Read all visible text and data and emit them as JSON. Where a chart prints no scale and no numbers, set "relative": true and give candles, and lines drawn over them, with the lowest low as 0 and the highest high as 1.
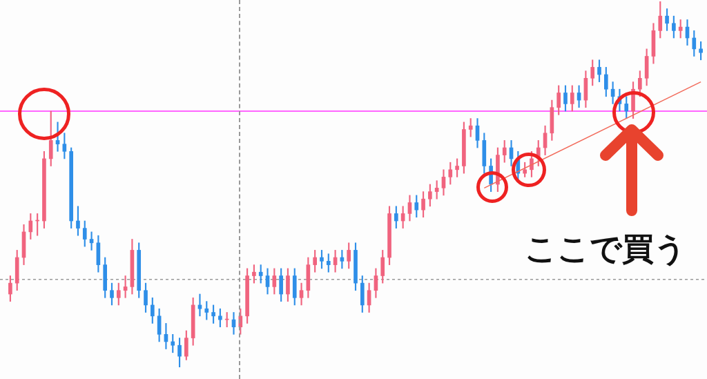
{
  "chart_data": {
    "type": "candlestick",
    "relative": true,
    "categories": [
      null,
      null,
      null,
      null,
      null,
      null,
      null,
      null,
      null,
      null,
      null,
      null,
      null,
      null,
      null,
      null,
      null,
      null,
      null,
      null,
      null,
      null,
      null,
      null,
      null,
      null,
      null,
      null,
      null,
      null,
      null,
      null,
      null,
      null,
      null,
      null,
      null,
      null,
      null,
      null,
      null,
      null,
      null,
      null,
      null,
      null,
      null,
      null,
      null,
      null,
      null,
      null,
      null,
      null,
      null,
      null,
      null,
      null,
      null,
      null,
      null,
      null,
      null,
      null,
      null,
      null,
      null,
      null,
      null,
      null,
      null,
      null,
      null,
      null,
      null,
      null,
      null,
      null,
      null,
      null,
      null,
      null,
      null,
      null,
      null,
      null,
      null,
      null,
      null,
      null,
      null,
      null,
      null,
      null,
      null,
      null,
      null,
      null,
      null,
      null,
      null,
      null,
      null
    ],
    "ohlc": [
      [
        0.2,
        0.25,
        0.18,
        0.23
      ],
      [
        0.23,
        0.32,
        0.21,
        0.3
      ],
      [
        0.3,
        0.39,
        0.28,
        0.37
      ],
      [
        0.37,
        0.42,
        0.35,
        0.4
      ],
      [
        0.4,
        0.42,
        0.36,
        0.4
      ],
      [
        0.4,
        0.59,
        0.38,
        0.57
      ],
      [
        0.57,
        0.7,
        0.55,
        0.62
      ],
      [
        0.62,
        0.67,
        0.59,
        0.61
      ],
      [
        0.61,
        0.64,
        0.57,
        0.59
      ],
      [
        0.59,
        0.6,
        0.38,
        0.4
      ],
      [
        0.4,
        0.44,
        0.36,
        0.38
      ],
      [
        0.38,
        0.4,
        0.33,
        0.35
      ],
      [
        0.35,
        0.37,
        0.32,
        0.34
      ],
      [
        0.34,
        0.36,
        0.26,
        0.28
      ],
      [
        0.28,
        0.3,
        0.19,
        0.21
      ],
      [
        0.21,
        0.23,
        0.17,
        0.19
      ],
      [
        0.19,
        0.23,
        0.17,
        0.21
      ],
      [
        0.21,
        0.25,
        0.19,
        0.22
      ],
      [
        0.22,
        0.35,
        0.2,
        0.32
      ],
      [
        0.32,
        0.34,
        0.19,
        0.21
      ],
      [
        0.21,
        0.23,
        0.15,
        0.17
      ],
      [
        0.17,
        0.19,
        0.12,
        0.14
      ],
      [
        0.14,
        0.16,
        0.07,
        0.09
      ],
      [
        0.09,
        0.12,
        0.05,
        0.07
      ],
      [
        0.07,
        0.09,
        0.04,
        0.06
      ],
      [
        0.06,
        0.08,
        0,
        0.03
      ],
      [
        0.03,
        0.1,
        0.02,
        0.08
      ],
      [
        0.08,
        0.19,
        0.06,
        0.17
      ],
      [
        0.17,
        0.2,
        0.14,
        0.16
      ],
      [
        0.16,
        0.18,
        0.13,
        0.15
      ],
      [
        0.15,
        0.17,
        0.12,
        0.14
      ],
      [
        0.14,
        0.16,
        0.11,
        0.13
      ],
      [
        0.13,
        0.15,
        0.11,
        0.13
      ],
      [
        0.13,
        0.15,
        0.09,
        0.11
      ],
      [
        0.11,
        0.16,
        0.09,
        0.14
      ],
      [
        0.14,
        0.27,
        0.12,
        0.25
      ],
      [
        0.25,
        0.28,
        0.23,
        0.26
      ],
      [
        0.26,
        0.28,
        0.23,
        0.25
      ],
      [
        0.25,
        0.27,
        0.2,
        0.22
      ],
      [
        0.22,
        0.27,
        0.2,
        0.25
      ],
      [
        0.25,
        0.27,
        0.18,
        0.2
      ],
      [
        0.2,
        0.27,
        0.18,
        0.25
      ],
      [
        0.25,
        0.27,
        0.17,
        0.19
      ],
      [
        0.19,
        0.23,
        0.17,
        0.21
      ],
      [
        0.21,
        0.3,
        0.19,
        0.28
      ],
      [
        0.28,
        0.32,
        0.26,
        0.3
      ],
      [
        0.3,
        0.32,
        0.27,
        0.29
      ],
      [
        0.29,
        0.31,
        0.26,
        0.28
      ],
      [
        0.28,
        0.32,
        0.26,
        0.3
      ],
      [
        0.3,
        0.32,
        0.27,
        0.29
      ],
      [
        0.29,
        0.34,
        0.27,
        0.32
      ],
      [
        0.32,
        0.34,
        0.21,
        0.23
      ],
      [
        0.23,
        0.25,
        0.15,
        0.17
      ],
      [
        0.17,
        0.23,
        0.15,
        0.21
      ],
      [
        0.21,
        0.27,
        0.19,
        0.25
      ],
      [
        0.25,
        0.32,
        0.23,
        0.3
      ],
      [
        0.3,
        0.44,
        0.28,
        0.42
      ],
      [
        0.42,
        0.44,
        0.38,
        0.4
      ],
      [
        0.4,
        0.44,
        0.38,
        0.42
      ],
      [
        0.42,
        0.47,
        0.4,
        0.45
      ],
      [
        0.45,
        0.47,
        0.41,
        0.43
      ],
      [
        0.43,
        0.48,
        0.41,
        0.46
      ],
      [
        0.46,
        0.5,
        0.44,
        0.48
      ],
      [
        0.48,
        0.51,
        0.46,
        0.49
      ],
      [
        0.49,
        0.54,
        0.47,
        0.52
      ],
      [
        0.52,
        0.56,
        0.5,
        0.54
      ],
      [
        0.54,
        0.57,
        0.52,
        0.55
      ],
      [
        0.55,
        0.67,
        0.53,
        0.65
      ],
      [
        0.65,
        0.68,
        0.63,
        0.66
      ],
      [
        0.66,
        0.68,
        0.6,
        0.62
      ],
      [
        0.62,
        0.64,
        0.53,
        0.55
      ],
      [
        0.55,
        0.57,
        0.48,
        0.5
      ],
      [
        0.5,
        0.6,
        0.48,
        0.58
      ],
      [
        0.58,
        0.62,
        0.56,
        0.6
      ],
      [
        0.6,
        0.62,
        0.55,
        0.57
      ],
      [
        0.57,
        0.59,
        0.51,
        0.53
      ],
      [
        0.53,
        0.56,
        0.52,
        0.54
      ],
      [
        0.54,
        0.59,
        0.52,
        0.57
      ],
      [
        0.57,
        0.62,
        0.55,
        0.6
      ],
      [
        0.6,
        0.66,
        0.58,
        0.64
      ],
      [
        0.64,
        0.73,
        0.62,
        0.71
      ],
      [
        0.71,
        0.77,
        0.69,
        0.75
      ],
      [
        0.75,
        0.77,
        0.7,
        0.72
      ],
      [
        0.72,
        0.77,
        0.7,
        0.75
      ],
      [
        0.75,
        0.77,
        0.71,
        0.73
      ],
      [
        0.73,
        0.81,
        0.71,
        0.79
      ],
      [
        0.79,
        0.84,
        0.77,
        0.82
      ],
      [
        0.82,
        0.84,
        0.78,
        0.8
      ],
      [
        0.8,
        0.82,
        0.74,
        0.76
      ],
      [
        0.76,
        0.78,
        0.72,
        0.74
      ],
      [
        0.74,
        0.76,
        0.7,
        0.72
      ],
      [
        0.72,
        0.74,
        0.68,
        0.7
      ],
      [
        0.7,
        0.78,
        0.68,
        0.76
      ],
      [
        0.76,
        0.81,
        0.74,
        0.79
      ],
      [
        0.79,
        0.87,
        0.77,
        0.85
      ],
      [
        0.85,
        0.94,
        0.83,
        0.92
      ],
      [
        0.92,
        1,
        0.9,
        0.96
      ],
      [
        0.96,
        0.98,
        0.92,
        0.94
      ],
      [
        0.94,
        0.96,
        0.9,
        0.92
      ],
      [
        0.92,
        0.95,
        0.9,
        0.93
      ],
      [
        0.93,
        0.95,
        0.88,
        0.9
      ],
      [
        0.9,
        0.92,
        0.85,
        0.87
      ],
      [
        0.87,
        0.89,
        0.84,
        0.86
      ]
    ],
    "colors": [
      "#f0647f",
      "#f0647f",
      "#f0647f",
      "#f0647f",
      "#f0647f",
      "#f0647f",
      "#f0647f",
      "#2f8fe8",
      "#2f8fe8",
      "#2f8fe8",
      "#2f8fe8",
      "#2f8fe8",
      "#2f8fe8",
      "#2f8fe8",
      "#2f8fe8",
      "#2f8fe8",
      "#f0647f",
      "#f0647f",
      "#f0647f",
      "#2f8fe8",
      "#2f8fe8",
      "#2f8fe8",
      "#2f8fe8",
      "#2f8fe8",
      "#2f8fe8",
      "#2f8fe8",
      "#f0647f",
      "#f0647f",
      "#2f8fe8",
      "#2f8fe8",
      "#2f8fe8",
      "#2f8fe8",
      "#f0647f",
      "#2f8fe8",
      "#f0647f",
      "#f0647f",
      "#f0647f",
      "#2f8fe8",
      "#2f8fe8",
      "#f0647f",
      "#2f8fe8",
      "#f0647f",
      "#2f8fe8",
      "#f0647f",
      "#f0647f",
      "#f0647f",
      "#2f8fe8",
      "#2f8fe8",
      "#f0647f",
      "#2f8fe8",
      "#f0647f",
      "#2f8fe8",
      "#2f8fe8",
      "#f0647f",
      "#f0647f",
      "#f0647f",
      "#f0647f",
      "#2f8fe8",
      "#f0647f",
      "#f0647f",
      "#2f8fe8",
      "#f0647f",
      "#f0647f",
      "#f0647f",
      "#f0647f",
      "#f0647f",
      "#f0647f",
      "#f0647f",
      "#f0647f",
      "#2f8fe8",
      "#2f8fe8",
      "#2f8fe8",
      "#f0647f",
      "#f0647f",
      "#2f8fe8",
      "#2f8fe8",
      "#f0647f",
      "#f0647f",
      "#f0647f",
      "#f0647f",
      "#f0647f",
      "#f0647f",
      "#2f8fe8",
      "#f0647f",
      "#2f8fe8",
      "#f0647f",
      "#f0647f",
      "#2f8fe8",
      "#2f8fe8",
      "#2f8fe8",
      "#2f8fe8",
      "#2f8fe8",
      "#f0647f",
      "#f0647f",
      "#f0647f",
      "#f0647f",
      "#f0647f",
      "#2f8fe8",
      "#2f8fe8",
      "#f0647f",
      "#2f8fe8",
      "#2f8fe8",
      "#2f8fe8"
    ],
    "series": [
      {
        "type": "line",
        "values": [
          null,
          null,
          null,
          null,
          null,
          null,
          null,
          null,
          null,
          null,
          null,
          null,
          null,
          null,
          null,
          null,
          null,
          null,
          null,
          null,
          null,
          null,
          null,
          null,
          null,
          null,
          null,
          null,
          null,
          null,
          null,
          null,
          null,
          null,
          null,
          null,
          null,
          null,
          null,
          null,
          null,
          null,
          null,
          null,
          null,
          null,
          null,
          null,
          null,
          null,
          null,
          null,
          null,
          null,
          null,
          null,
          null,
          null,
          null,
          null,
          null,
          null,
          null,
          null,
          null,
          null,
          null,
          null,
          null,
          null,
          0.49,
          null,
          null,
          null,
          null,
          null,
          null,
          null,
          null,
          null,
          null,
          null,
          null,
          null,
          null,
          null,
          null,
          null,
          null,
          null,
          null,
          null,
          null,
          null,
          null,
          null,
          null,
          null,
          null,
          null,
          null,
          null,
          0.78
        ],
        "color": "#f26b5b"
      }
    ],
    "ref_lines": [
      {
        "axis": "y",
        "value": 0.7,
        "color": "#ff33ff",
        "line_style": "solid"
      },
      {
        "axis": "y",
        "value": 0.24,
        "color": "#999999",
        "line_style": "dashed"
      }
    ],
    "annotations": [
      "ここで買う"
    ]
  }
}
